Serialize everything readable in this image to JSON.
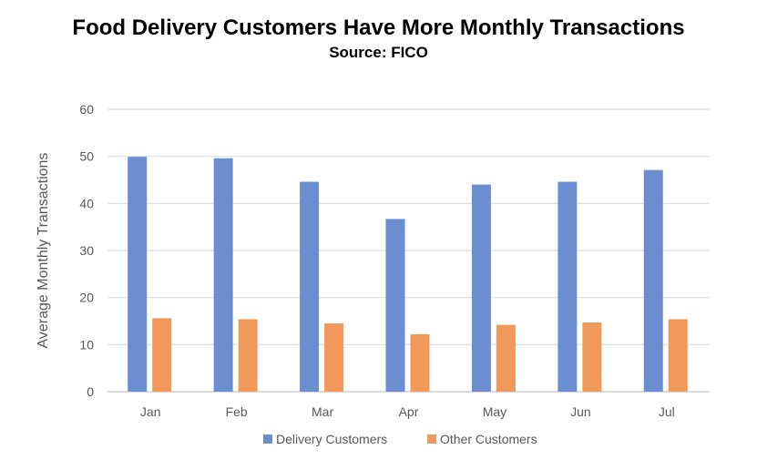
{
  "chart_data": {
    "type": "bar",
    "title": "Food Delivery Customers Have More Monthly Transactions",
    "subtitle": "Source: FICO",
    "xlabel": "",
    "ylabel": "Average Monthly Transactions",
    "ylim": [
      0,
      60
    ],
    "yticks": [
      0,
      10,
      20,
      30,
      40,
      50,
      60
    ],
    "grid": true,
    "legend_position": "bottom",
    "categories": [
      "Jan",
      "Feb",
      "Mar",
      "Apr",
      "May",
      "Jun",
      "Jul"
    ],
    "series": [
      {
        "name": "Delivery Customers",
        "color": "#6a8ed0",
        "values": [
          49.9,
          49.6,
          44.6,
          36.7,
          44.0,
          44.6,
          47.1
        ]
      },
      {
        "name": "Other Customers",
        "color": "#f0995a",
        "values": [
          15.6,
          15.4,
          14.5,
          12.2,
          14.2,
          14.7,
          15.4
        ]
      }
    ]
  }
}
